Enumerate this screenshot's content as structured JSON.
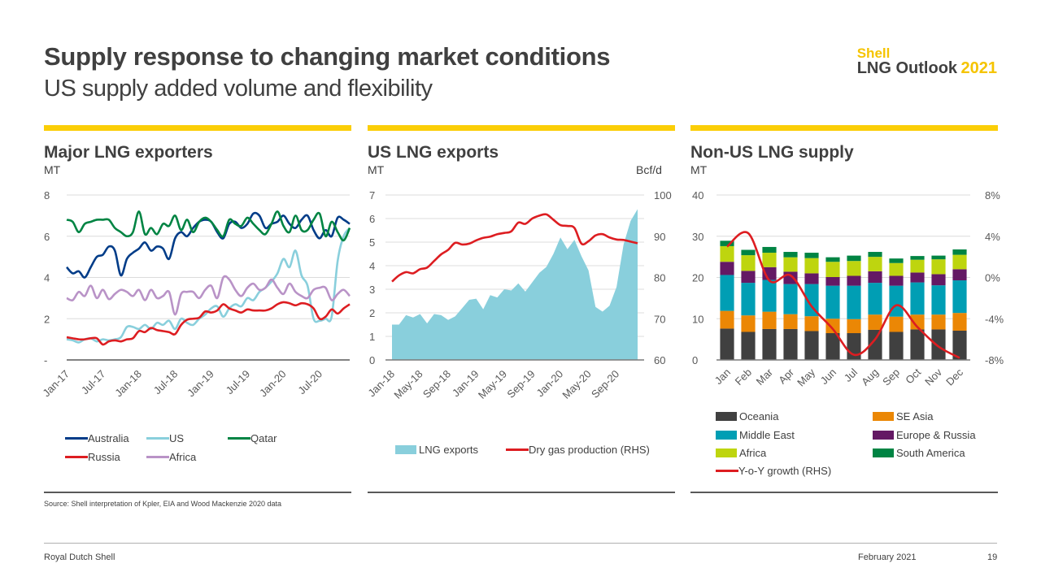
{
  "header": {
    "title": "Supply response to changing market conditions",
    "subtitle": "US supply added volume and flexibility",
    "brand_line1": "Shell",
    "brand_line2": "LNG Outlook",
    "brand_year": "2021"
  },
  "colors": {
    "accent_yellow": "#fbce07",
    "text": "#404040"
  },
  "footer": {
    "source": "Source: Shell interpretation of Kpler, EIA and Wood Mackenzie 2020 data",
    "company": "Royal Dutch Shell",
    "date": "February 2021",
    "page": "19"
  },
  "chart_data": [
    {
      "type": "line",
      "title": "Major LNG exporters",
      "ylabel": "MT",
      "ylim": [
        0,
        8
      ],
      "yticks": [
        0,
        2,
        4,
        6,
        8
      ],
      "ytick_labels": [
        "-",
        "2",
        "4",
        "6",
        "8"
      ],
      "grid": true,
      "legend_position": "bottom",
      "x_tick_labels": [
        "Jan-17",
        "Jul-17",
        "Jan-18",
        "Jul-18",
        "Jan-19",
        "Jul-19",
        "Jan-20",
        "Jul-20"
      ],
      "x_start": "Jan-17",
      "n_points": 48,
      "series": [
        {
          "name": "Australia",
          "color": "#003c88",
          "values": [
            4.5,
            4.2,
            4.3,
            4.0,
            4.5,
            5.0,
            5.1,
            5.5,
            5.3,
            4.1,
            4.9,
            5.2,
            5.4,
            5.7,
            5.3,
            5.5,
            5.4,
            4.9,
            5.9,
            6.2,
            6.0,
            6.4,
            6.7,
            6.8,
            6.7,
            6.2,
            5.9,
            6.6,
            6.7,
            6.4,
            6.6,
            7.1,
            7.0,
            6.4,
            6.6,
            6.7,
            7.0,
            6.6,
            6.4,
            6.8,
            7.0,
            6.3,
            5.9,
            6.3,
            6.0,
            6.9,
            6.8,
            6.6
          ]
        },
        {
          "name": "US",
          "color": "#89cfdc",
          "values": [
            1.0,
            0.95,
            0.85,
            1.0,
            1.05,
            0.9,
            1.0,
            0.95,
            1.0,
            1.1,
            1.6,
            1.6,
            1.5,
            1.7,
            1.5,
            1.8,
            1.7,
            1.9,
            1.5,
            2.0,
            1.8,
            1.7,
            2.0,
            2.2,
            2.5,
            2.6,
            2.1,
            2.5,
            2.7,
            2.6,
            3.0,
            2.9,
            3.3,
            3.5,
            3.8,
            4.2,
            4.9,
            4.5,
            5.3,
            4.1,
            3.6,
            2.0,
            1.9,
            2.0,
            2.1,
            4.8,
            6.0,
            6.4
          ]
        },
        {
          "name": "Qatar",
          "color": "#008443",
          "values": [
            6.8,
            6.7,
            6.2,
            6.6,
            6.7,
            6.8,
            6.8,
            6.8,
            6.4,
            6.2,
            6.0,
            6.2,
            7.2,
            6.1,
            6.4,
            6.1,
            6.6,
            6.5,
            7.0,
            6.3,
            6.8,
            6.2,
            6.7,
            6.9,
            6.7,
            6.3,
            6.0,
            6.8,
            6.6,
            6.5,
            6.9,
            6.6,
            6.3,
            6.1,
            6.6,
            7.2,
            6.5,
            6.2,
            7.0,
            6.3,
            6.3,
            6.8,
            7.1,
            6.0,
            6.7,
            6.2,
            5.8,
            6.4
          ]
        },
        {
          "name": "Russia",
          "color": "#dd1d21",
          "values": [
            1.1,
            1.05,
            1.0,
            1.0,
            1.05,
            1.05,
            0.75,
            0.9,
            0.95,
            0.9,
            1.0,
            1.05,
            1.4,
            1.35,
            1.55,
            1.45,
            1.4,
            1.35,
            1.25,
            1.7,
            1.95,
            2.0,
            2.05,
            2.35,
            2.3,
            2.4,
            2.7,
            2.5,
            2.4,
            2.3,
            2.45,
            2.4,
            2.4,
            2.4,
            2.5,
            2.7,
            2.8,
            2.75,
            2.65,
            2.75,
            2.7,
            2.5,
            2.0,
            2.1,
            2.45,
            2.25,
            2.5,
            2.7
          ]
        },
        {
          "name": "Africa",
          "color": "#b993c7",
          "values": [
            3.0,
            2.9,
            3.3,
            3.1,
            3.6,
            3.0,
            3.4,
            2.95,
            3.2,
            3.4,
            3.3,
            3.1,
            3.4,
            2.9,
            3.4,
            3.0,
            3.1,
            3.3,
            2.2,
            3.2,
            3.3,
            3.3,
            3.0,
            3.4,
            3.6,
            3.0,
            4.0,
            3.9,
            3.4,
            3.1,
            3.5,
            3.7,
            3.4,
            3.5,
            3.9,
            3.5,
            3.2,
            3.7,
            3.3,
            3.1,
            3.0,
            3.4,
            3.5,
            3.5,
            2.9,
            3.2,
            3.4,
            3.1
          ]
        }
      ]
    },
    {
      "type": "area",
      "title": "US LNG exports",
      "ylabel": "MT",
      "ylabel_right": "Bcf/d",
      "ylim": [
        0,
        7
      ],
      "ylim_right": [
        60,
        100
      ],
      "yticks": [
        0,
        1,
        2,
        3,
        4,
        5,
        6,
        7
      ],
      "yticks_right": [
        60,
        70,
        80,
        90,
        100
      ],
      "grid": true,
      "legend_position": "bottom",
      "x_tick_labels": [
        "Jan-18",
        "May-18",
        "Sep-18",
        "Jan-19",
        "May-19",
        "Sep-19",
        "Jan-20",
        "May-20",
        "Sep-20"
      ],
      "x_start": "Jan-18",
      "n_points": 36,
      "series": [
        {
          "name": "LNG exports",
          "color": "#89cfdc",
          "kind": "area",
          "axis": "left",
          "values": [
            1.5,
            1.5,
            1.9,
            1.8,
            1.95,
            1.55,
            1.95,
            1.9,
            1.7,
            1.85,
            2.2,
            2.55,
            2.6,
            2.15,
            2.75,
            2.65,
            3.0,
            2.95,
            3.25,
            2.9,
            3.3,
            3.7,
            3.95,
            4.5,
            5.2,
            4.7,
            5.1,
            4.4,
            3.8,
            2.25,
            2.05,
            2.3,
            3.1,
            4.9,
            5.9,
            6.4
          ]
        },
        {
          "name": "Dry gas production (RHS)",
          "color": "#dd1d21",
          "kind": "line",
          "axis": "right",
          "values": [
            79,
            80.5,
            81.3,
            81,
            82,
            82.4,
            84,
            85.6,
            86.7,
            88.4,
            88,
            88.2,
            89,
            89.6,
            89.9,
            90.5,
            90.8,
            91.2,
            93.3,
            93,
            94.3,
            95,
            95.3,
            94,
            92.7,
            92.5,
            92,
            88.2,
            88.8,
            90.2,
            90.5,
            89.7,
            89.2,
            89.1,
            88.7,
            88.3
          ]
        }
      ]
    },
    {
      "type": "bar",
      "stacked": true,
      "title": "Non-US LNG supply",
      "ylabel": "MT",
      "ylim": [
        0,
        40
      ],
      "ylim_right": [
        -8,
        8
      ],
      "yticks": [
        0,
        10,
        20,
        30,
        40
      ],
      "yticks_right_labels": [
        "-8%",
        "-4%",
        "0%",
        "4%",
        "8%"
      ],
      "grid": true,
      "legend_position": "bottom",
      "categories": [
        "Jan",
        "Feb",
        "Mar",
        "Apr",
        "May",
        "Jun",
        "Jul",
        "Aug",
        "Sep",
        "Oct",
        "Nov",
        "Dec"
      ],
      "series": [
        {
          "name": "Oceania",
          "color": "#404040",
          "values": [
            7.6,
            6.8,
            7.5,
            7.5,
            7.0,
            6.5,
            6.5,
            7.3,
            6.8,
            7.4,
            7.4,
            7.1
          ]
        },
        {
          "name": "SE Asia",
          "color": "#eb8705",
          "values": [
            4.3,
            4.0,
            4.2,
            3.6,
            3.6,
            3.5,
            3.4,
            3.7,
            3.7,
            3.6,
            3.6,
            4.3
          ]
        },
        {
          "name": "Middle East",
          "color": "#009eb4",
          "values": [
            8.7,
            7.9,
            7.7,
            7.3,
            7.8,
            8.0,
            8.1,
            7.7,
            7.5,
            7.8,
            7.1,
            7.9
          ]
        },
        {
          "name": "Europe & Russia",
          "color": "#641964",
          "values": [
            3.2,
            2.9,
            3.1,
            3.0,
            2.6,
            2.1,
            2.4,
            2.8,
            2.4,
            2.4,
            2.7,
            2.7
          ]
        },
        {
          "name": "Africa",
          "color": "#bed50f",
          "values": [
            3.8,
            3.8,
            3.5,
            3.5,
            3.7,
            3.7,
            3.6,
            3.5,
            3.1,
            3.1,
            3.6,
            3.5
          ]
        },
        {
          "name": "South America",
          "color": "#008443",
          "values": [
            1.3,
            1.3,
            1.4,
            1.3,
            1.3,
            1.1,
            1.3,
            1.2,
            1.1,
            0.9,
            0.9,
            1.3
          ]
        }
      ],
      "line_series": {
        "name": "Y-o-Y growth (RHS)",
        "color": "#dd1d21",
        "axis": "right",
        "values": [
          3.0,
          4.3,
          -0.3,
          0.2,
          -2.8,
          -5.0,
          -7.5,
          -6.0,
          -2.7,
          -4.8,
          -6.7,
          -7.8
        ]
      }
    }
  ],
  "legend_labels": {
    "c1": [
      "Australia",
      "US",
      "Qatar",
      "Russia",
      "Africa"
    ],
    "c2": [
      "LNG exports",
      "Dry gas production (RHS)"
    ],
    "c3": [
      "Oceania",
      "SE Asia",
      "Middle East",
      "Europe & Russia",
      "Africa",
      "South America",
      "Y-o-Y growth (RHS)"
    ]
  }
}
